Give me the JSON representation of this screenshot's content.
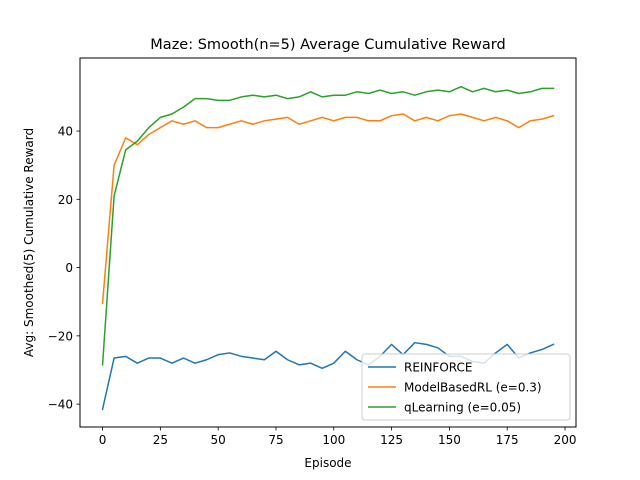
{
  "chart_data": {
    "type": "line",
    "title": "Maze: Smooth(n=5) Average Cumulative Reward",
    "xlabel": "Episode",
    "ylabel": "Avg: Smoothed(5) Cumulative Reward",
    "xlim": [
      -9.75,
      204.75
    ],
    "ylim": [
      -46.7,
      61.4
    ],
    "xticks": [
      0,
      25,
      50,
      75,
      100,
      125,
      150,
      175,
      200
    ],
    "yticks": [
      -40,
      -20,
      0,
      20,
      40
    ],
    "grid": false,
    "legend_position": "lower-right",
    "x_step": 5,
    "series": [
      {
        "name": "REINFORCE",
        "color": "#1f77b4",
        "values": [
          -41.5,
          -26.5,
          -26.0,
          -28.0,
          -26.5,
          -26.5,
          -28.0,
          -26.5,
          -28.0,
          -27.0,
          -25.5,
          -25.0,
          -26.0,
          -26.5,
          -27.0,
          -24.5,
          -27.0,
          -28.5,
          -28.0,
          -29.5,
          -28.0,
          -24.5,
          -27.0,
          -28.5,
          -26.0,
          -22.5,
          -25.5,
          -22.0,
          -22.5,
          -23.5,
          -26.0,
          -26.0,
          -27.5,
          -28.0,
          -25.0,
          -22.5,
          -26.5,
          -25.0,
          -24.0,
          -22.5
        ]
      },
      {
        "name": "ModelBasedRL (e=0.3)",
        "color": "#ff7f0e",
        "values": [
          -10.5,
          30.0,
          38.0,
          36.0,
          39.0,
          41.0,
          43.0,
          42.0,
          43.0,
          41.0,
          41.0,
          42.0,
          43.0,
          42.0,
          43.0,
          43.5,
          44.0,
          42.0,
          43.0,
          44.0,
          43.0,
          44.0,
          44.0,
          43.0,
          43.0,
          44.5,
          45.0,
          43.0,
          44.0,
          43.0,
          44.5,
          45.0,
          44.0,
          43.0,
          44.0,
          43.0,
          41.0,
          43.0,
          43.5,
          44.5
        ]
      },
      {
        "name": "qLearning (e=0.05)",
        "color": "#2ca02c",
        "values": [
          -28.5,
          21.0,
          34.5,
          37.0,
          41.0,
          44.0,
          45.0,
          47.0,
          49.5,
          49.5,
          49.0,
          49.0,
          50.0,
          50.5,
          50.0,
          50.5,
          49.5,
          50.0,
          51.5,
          50.0,
          50.5,
          50.5,
          51.5,
          51.0,
          52.0,
          51.0,
          51.5,
          50.5,
          51.5,
          52.0,
          51.5,
          53.0,
          51.5,
          52.5,
          51.5,
          52.0,
          51.0,
          51.5,
          52.5,
          52.5
        ]
      }
    ]
  }
}
